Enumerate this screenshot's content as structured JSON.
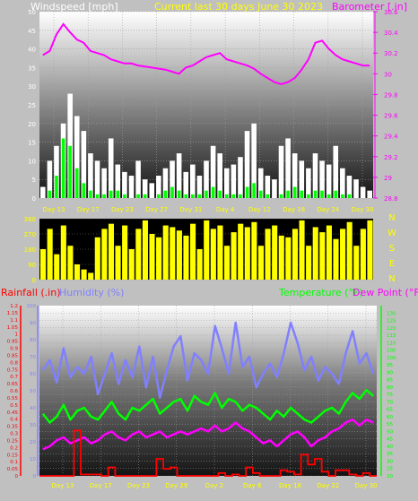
{
  "header": {
    "left": "Windspeed [mph]",
    "center": "Current last 30 days June 30 2023",
    "right": "Barometer [.in]"
  },
  "colors": {
    "background": "#c0c0c0",
    "barometer": "#ff00ff",
    "windspeed": "#ffffff",
    "gust": "#00ff00",
    "direction": "#ffff00",
    "rainfall": "#ff0000",
    "humidity": "#8080ff",
    "temperature": "#00ff00",
    "dewpoint": "#ff00ff",
    "title": "#ffff00",
    "compass": "#ffff00"
  },
  "compass_labels": [
    "N",
    "W",
    "S",
    "E",
    "N"
  ],
  "lower_header": {
    "rainfall": "Rainfall (.in)",
    "humidity": "Humidity (%)",
    "temperature": "Temperature (°F)",
    "dewpoint": "Dew Point (°F)"
  },
  "chart_data": [
    {
      "type": "area",
      "name": "wind-barometer",
      "left_axis_ticks": [
        0,
        5,
        10,
        15,
        20,
        25,
        30,
        35,
        40,
        45,
        50
      ],
      "right_axis_ticks": [
        28.8,
        29,
        29.2,
        29.4,
        29.6,
        29.8,
        30,
        30.2,
        30.4,
        30.6
      ],
      "x_ticks": [
        "Day 13",
        "Day 17",
        "Day 23",
        "Day 27",
        "Day 31",
        "Day 4",
        "Day 12",
        "Day 18",
        "Day 24",
        "Day 30"
      ],
      "ylim_left": [
        0,
        50
      ],
      "ylim_right": [
        28.8,
        30.6
      ],
      "series": [
        {
          "id": "barometer",
          "axis": "right",
          "values": [
            30.18,
            30.22,
            30.38,
            30.48,
            30.4,
            30.33,
            30.3,
            30.22,
            30.2,
            30.18,
            30.14,
            30.12,
            30.1,
            30.1,
            30.08,
            30.07,
            30.06,
            30.05,
            30.04,
            30.02,
            30.0,
            30.06,
            30.08,
            30.12,
            30.16,
            30.18,
            30.2,
            30.14,
            30.12,
            30.1,
            30.08,
            30.05,
            30.0,
            29.96,
            29.92,
            29.9,
            29.92,
            29.96,
            30.04,
            30.14,
            30.3,
            30.32,
            30.24,
            30.18,
            30.14,
            30.12,
            30.1,
            30.08,
            30.08
          ]
        },
        {
          "id": "windspeed",
          "axis": "left",
          "values": [
            3,
            10,
            14,
            20,
            28,
            22,
            18,
            12,
            10,
            8,
            16,
            9,
            7,
            6,
            10,
            5,
            4,
            6,
            8,
            10,
            12,
            7,
            9,
            6,
            10,
            14,
            12,
            8,
            9,
            11,
            18,
            20,
            8,
            6,
            5,
            14,
            16,
            12,
            10,
            8,
            12,
            10,
            9,
            14,
            8,
            6,
            5,
            3,
            2
          ]
        },
        {
          "id": "gust",
          "axis": "left",
          "values": [
            0,
            2,
            6,
            16,
            14,
            8,
            4,
            2,
            1,
            1,
            2,
            2,
            1,
            0,
            1,
            1,
            0,
            1,
            2,
            3,
            2,
            1,
            1,
            1,
            2,
            3,
            2,
            1,
            1,
            1,
            3,
            4,
            2,
            1,
            0,
            1,
            2,
            3,
            2,
            1,
            2,
            2,
            1,
            2,
            1,
            1,
            0,
            0,
            0
          ]
        }
      ]
    },
    {
      "type": "area",
      "name": "wind-direction",
      "y_ticks": [
        0,
        90,
        180,
        270,
        360
      ],
      "ylim": [
        0,
        360
      ],
      "series": [
        {
          "id": "direction",
          "values": [
            180,
            300,
            150,
            320,
            200,
            90,
            60,
            40,
            250,
            300,
            330,
            200,
            320,
            180,
            300,
            350,
            270,
            250,
            320,
            310,
            290,
            260,
            330,
            180,
            350,
            300,
            320,
            200,
            280,
            330,
            310,
            340,
            200,
            300,
            320,
            260,
            250,
            300,
            350,
            200,
            310,
            280,
            320,
            240,
            300,
            340,
            200,
            300,
            350
          ]
        }
      ]
    },
    {
      "type": "line",
      "name": "climate",
      "rain_ticks": [
        0,
        0.05,
        0.1,
        0.15,
        0.2,
        0.25,
        0.3,
        0.35,
        0.4,
        0.45,
        0.5,
        0.55,
        0.6,
        0.65,
        0.7,
        0.75,
        0.8,
        0.85,
        0.9,
        0.95,
        1,
        1.05,
        1.1,
        1.15,
        1.2
      ],
      "humidity_ticks": [
        0,
        10,
        20,
        30,
        40,
        50,
        60,
        70,
        80,
        90,
        100
      ],
      "temp_ticks": [
        20,
        25,
        30,
        35,
        40,
        45,
        50,
        55,
        60,
        65,
        70,
        75,
        80,
        85,
        90,
        95,
        100,
        105,
        110,
        115,
        120,
        125,
        130
      ],
      "x_ticks": [
        "Day 13",
        "Day 17",
        "Day 23",
        "Day 29",
        "Day 2",
        "Day 6",
        "Day 16",
        "Day 22",
        "Day 30"
      ],
      "ylim_rain": [
        0,
        1.2
      ],
      "ylim_humidity": [
        0,
        100
      ],
      "ylim_temp": [
        20,
        135
      ],
      "series": [
        {
          "id": "humidity",
          "axis": "humidity",
          "values": [
            62,
            68,
            55,
            75,
            58,
            64,
            60,
            70,
            48,
            60,
            72,
            54,
            68,
            58,
            76,
            52,
            70,
            46,
            62,
            76,
            82,
            56,
            72,
            68,
            60,
            88,
            75,
            60,
            90,
            64,
            70,
            52,
            60,
            66,
            58,
            72,
            90,
            78,
            62,
            70,
            56,
            64,
            60,
            54,
            72,
            85,
            66,
            72,
            60
          ]
        },
        {
          "id": "temperature",
          "axis": "temp",
          "values": [
            62,
            56,
            60,
            68,
            58,
            64,
            66,
            60,
            58,
            64,
            70,
            62,
            58,
            66,
            64,
            68,
            72,
            62,
            66,
            70,
            72,
            64,
            74,
            70,
            68,
            76,
            66,
            72,
            70,
            64,
            68,
            66,
            62,
            58,
            64,
            60,
            66,
            62,
            58,
            56,
            60,
            64,
            66,
            62,
            70,
            76,
            72,
            78,
            74
          ]
        },
        {
          "id": "dewpoint",
          "axis": "temp",
          "values": [
            38,
            40,
            44,
            46,
            42,
            44,
            46,
            42,
            44,
            48,
            50,
            46,
            44,
            48,
            50,
            46,
            48,
            50,
            46,
            48,
            50,
            48,
            50,
            52,
            50,
            54,
            50,
            52,
            56,
            52,
            50,
            46,
            42,
            44,
            40,
            44,
            48,
            50,
            46,
            40,
            44,
            46,
            50,
            52,
            56,
            58,
            54,
            58,
            56
          ]
        },
        {
          "id": "rainfall",
          "axis": "rain",
          "values": [
            0,
            0,
            0,
            0,
            0,
            0.32,
            0.01,
            0.01,
            0.01,
            0,
            0.06,
            0,
            0,
            0,
            0,
            0,
            0,
            0.12,
            0.05,
            0.06,
            0,
            0,
            0,
            0,
            0,
            0,
            0.02,
            0,
            0.01,
            0,
            0.06,
            0.02,
            0,
            0,
            0,
            0.04,
            0.03,
            0.01,
            0.15,
            0.08,
            0.12,
            0.03,
            0,
            0.04,
            0.04,
            0.01,
            0,
            0.02,
            0
          ]
        }
      ]
    }
  ]
}
